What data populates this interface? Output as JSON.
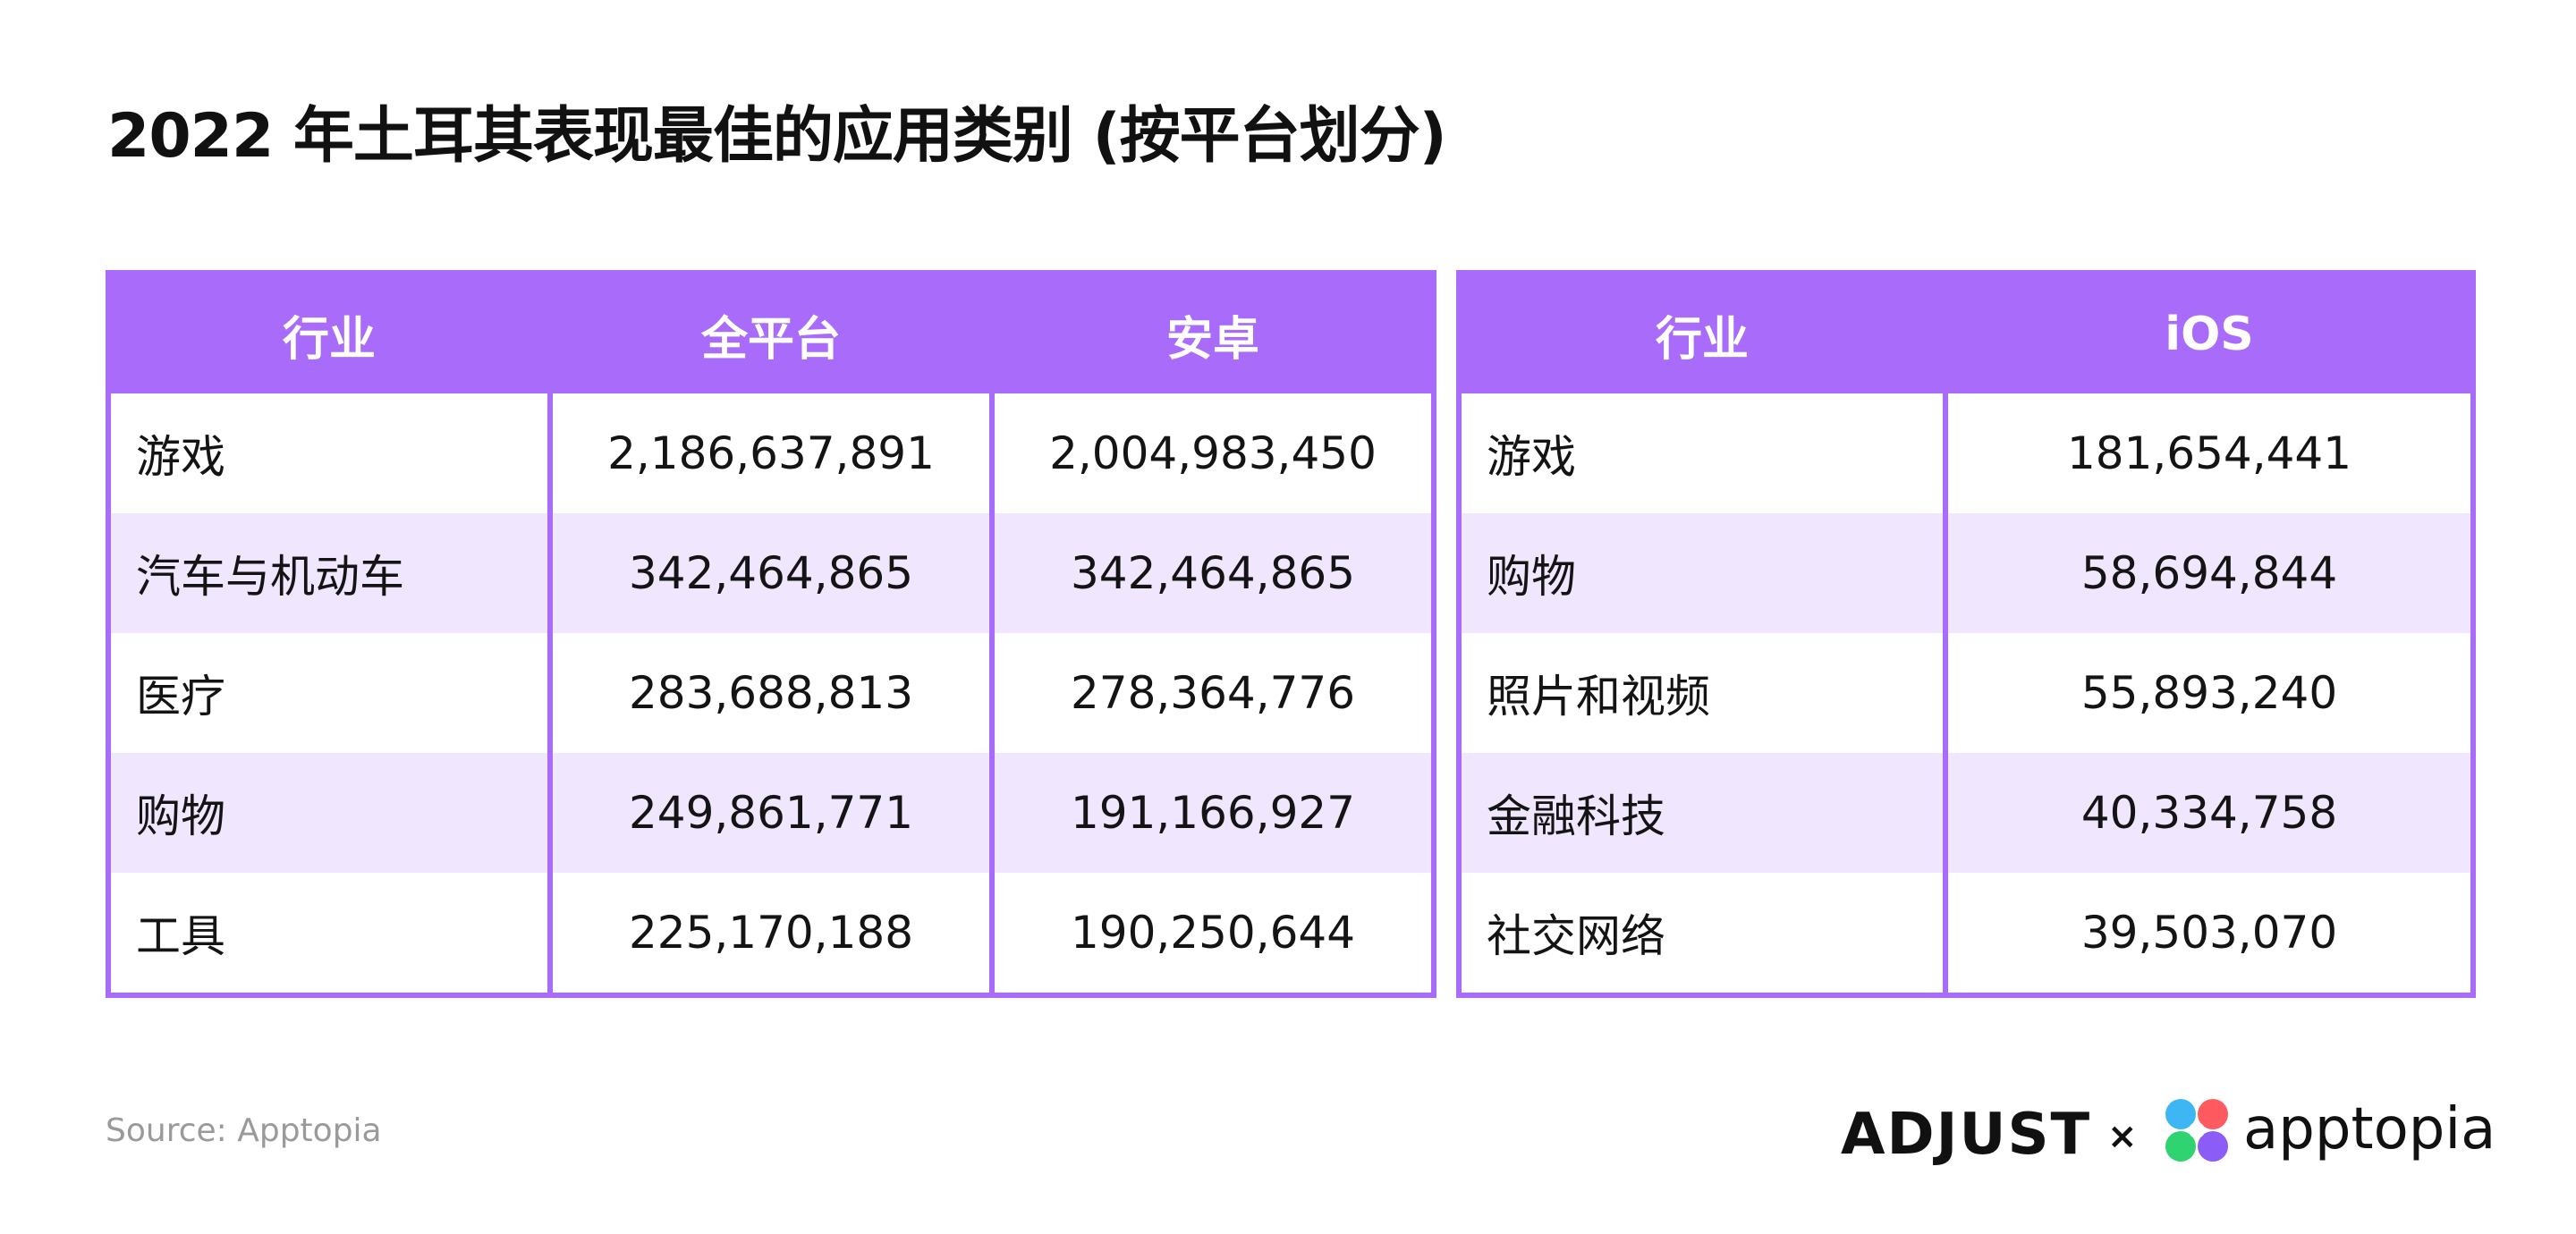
{
  "title": "2022 年土耳其表现最佳的应用类别 (按平台划分)",
  "colors": {
    "header": "#a86bfa",
    "stripe": "#f0e6fd",
    "border": "#a86bfa"
  },
  "chart_data": [
    {
      "type": "table",
      "columns": [
        "行业",
        "全平台",
        "安卓"
      ],
      "rows": [
        [
          "游戏",
          "2,186,637,891",
          "2,004,983,450"
        ],
        [
          "汽车与机动车",
          "342,464,865",
          "342,464,865"
        ],
        [
          "医疗",
          "283,688,813",
          "278,364,776"
        ],
        [
          "购物",
          "249,861,771",
          "191,166,927"
        ],
        [
          "工具",
          "225,170,188",
          "190,250,644"
        ]
      ]
    },
    {
      "type": "table",
      "columns": [
        "行业",
        "iOS"
      ],
      "rows": [
        [
          "游戏",
          "181,654,441"
        ],
        [
          "购物",
          "58,694,844"
        ],
        [
          "照片和视频",
          "55,893,240"
        ],
        [
          "金融科技",
          "40,334,758"
        ],
        [
          "社交网络",
          "39,503,070"
        ]
      ]
    }
  ],
  "footer": {
    "source": "Source: Apptopia",
    "logo_adjust": "ADJUST",
    "logo_separator": "×",
    "logo_apptopia": "apptopia"
  },
  "icons": {
    "apptopia_mark": "apptopia-flower-icon"
  }
}
